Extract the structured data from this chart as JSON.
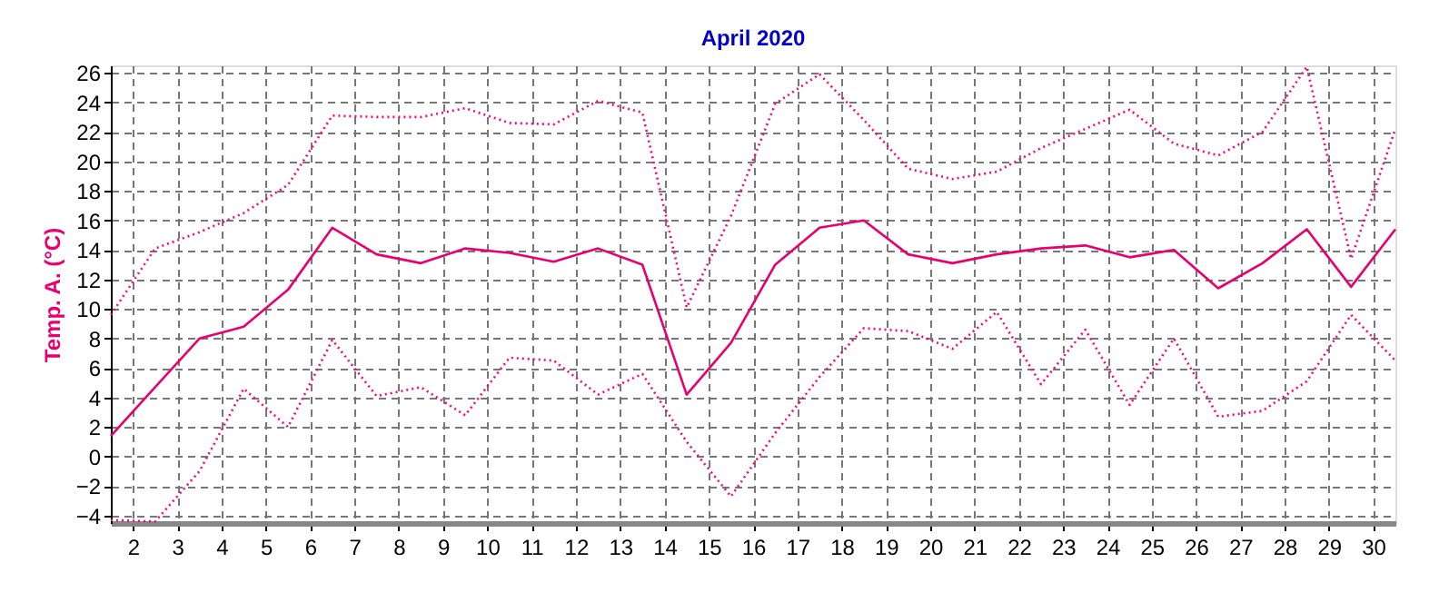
{
  "chart_data": {
    "type": "line",
    "title": "April 2020",
    "ylabel": "Temp. A. (°C)",
    "x": [
      1.5,
      2.5,
      3.5,
      4.5,
      5.5,
      6.5,
      7.5,
      8.5,
      9.5,
      10.5,
      11.5,
      12.5,
      13.5,
      14.5,
      15.5,
      16.5,
      17.5,
      18.5,
      19.5,
      20.5,
      21.5,
      22.5,
      23.5,
      24.5,
      25.5,
      26.5,
      27.5,
      28.5,
      29.5,
      30.5
    ],
    "series": [
      {
        "color": "#ff0080",
        "line_style": "dotted",
        "values": [
          9.6,
          14.1,
          15.2,
          16.5,
          18.4,
          23.1,
          23.0,
          23.0,
          23.6,
          22.6,
          22.5,
          24.1,
          23.3,
          10.1,
          16.3,
          23.9,
          25.9,
          22.8,
          19.5,
          18.8,
          19.3,
          20.9,
          22.2,
          23.5,
          21.2,
          20.4,
          22.0,
          26.4,
          13.4,
          22.2
        ]
      },
      {
        "color": "#e8006e",
        "line_style": "solid",
        "values": [
          1.4,
          4.7,
          8.0,
          8.8,
          11.3,
          15.5,
          13.7,
          13.1,
          14.1,
          13.8,
          13.2,
          14.1,
          13.0,
          4.2,
          7.7,
          13.0,
          15.5,
          16.0,
          13.7,
          13.1,
          13.7,
          14.1,
          14.3,
          13.5,
          14.0,
          11.4,
          13.1,
          15.4,
          11.5,
          15.4
        ]
      },
      {
        "color": "#ff0080",
        "line_style": "dotted",
        "values": [
          -4.3,
          -4.4,
          -1.0,
          4.6,
          2.0,
          7.9,
          4.1,
          4.7,
          2.8,
          6.7,
          6.5,
          4.2,
          5.6,
          1.0,
          -2.7,
          1.6,
          5.4,
          8.7,
          8.5,
          7.3,
          9.8,
          4.9,
          8.6,
          3.5,
          8.0,
          2.7,
          3.1,
          5.1,
          9.6,
          6.5
        ]
      }
    ],
    "xlim": [
      1.5,
      30.5
    ],
    "xticks": [
      2,
      3,
      4,
      5,
      6,
      7,
      8,
      9,
      10,
      11,
      12,
      13,
      14,
      15,
      16,
      17,
      18,
      19,
      20,
      21,
      22,
      23,
      24,
      25,
      26,
      27,
      28,
      29,
      30
    ],
    "ylim": [
      -4.5,
      26.5
    ],
    "yticks": [
      -4,
      -2,
      0,
      2,
      4,
      6,
      8,
      10,
      12,
      14,
      16,
      18,
      20,
      22,
      24,
      26
    ],
    "grid": true,
    "marker": "none"
  }
}
